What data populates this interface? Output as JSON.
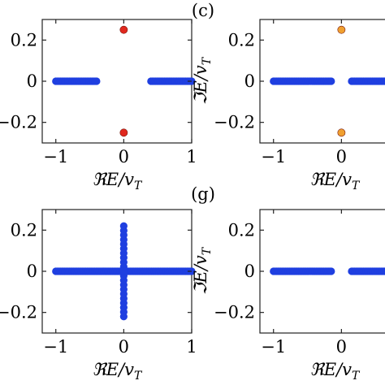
{
  "colors": {
    "blue": "#1f3fe0",
    "red": "#e0281e",
    "orange": "#f0a030"
  },
  "chart_data": [
    {
      "type": "scatter",
      "title": "(c)",
      "xlabel": "ℜE/v_T",
      "ylabel": "",
      "xlim": [
        -1.2,
        1.0
      ],
      "ylim": [
        -0.3,
        0.3
      ],
      "x_ticks": [
        "−1",
        "0",
        "1"
      ],
      "y_ticks": [
        "0.2",
        "0",
        "−0.2"
      ],
      "x_tick_values": [
        -1,
        0,
        1
      ],
      "y_tick_values": [
        0.2,
        0,
        -0.2
      ],
      "grid": false,
      "series": [
        {
          "color": "#1f3fe0",
          "segments": [
            {
              "x": [
                -1.0,
                -0.4
              ],
              "y": [
                0,
                0
              ]
            },
            {
              "x": [
                0.4,
                1.0
              ],
              "y": [
                0,
                0
              ]
            }
          ]
        },
        {
          "color": "#e0281e",
          "points": [
            {
              "x": 0,
              "y": 0.25
            },
            {
              "x": 0,
              "y": -0.25
            }
          ]
        }
      ]
    },
    {
      "type": "scatter",
      "title": "",
      "xlabel": "ℜE/v_T",
      "ylabel": "ℑE/v_T",
      "xlim": [
        -1.2,
        1.0
      ],
      "ylim": [
        -0.3,
        0.3
      ],
      "x_ticks": [
        "−1",
        "0"
      ],
      "y_ticks": [
        "0.2",
        "0",
        "−0.2"
      ],
      "x_tick_values": [
        -1,
        0
      ],
      "y_tick_values": [
        0.2,
        0,
        -0.2
      ],
      "grid": false,
      "series": [
        {
          "color": "#1f3fe0",
          "segments": [
            {
              "x": [
                -1.0,
                -0.15
              ],
              "y": [
                0,
                0
              ]
            },
            {
              "x": [
                0.15,
                1.0
              ],
              "y": [
                0,
                0
              ]
            }
          ]
        },
        {
          "color": "#f0a030",
          "points": [
            {
              "x": 0,
              "y": 0.25
            },
            {
              "x": 0,
              "y": -0.25
            }
          ]
        }
      ]
    },
    {
      "type": "scatter",
      "title": "(g)",
      "xlabel": "ℜE/v_T",
      "ylabel": "",
      "xlim": [
        -1.2,
        1.0
      ],
      "ylim": [
        -0.3,
        0.3
      ],
      "x_ticks": [
        "−1",
        "0",
        "1"
      ],
      "y_ticks": [
        "0.2",
        "0",
        "−0.2"
      ],
      "x_tick_values": [
        -1,
        0,
        1
      ],
      "y_tick_values": [
        0.2,
        0,
        -0.2
      ],
      "grid": false,
      "series": [
        {
          "color": "#1f3fe0",
          "segments": [
            {
              "x": [
                -1.0,
                1.0
              ],
              "y": [
                0,
                0
              ]
            },
            {
              "x": [
                0,
                0
              ],
              "y": [
                -0.22,
                0.22
              ]
            }
          ]
        }
      ]
    },
    {
      "type": "scatter",
      "title": "",
      "xlabel": "ℜE/v_T",
      "ylabel": "ℑE/v_T",
      "xlim": [
        -1.2,
        1.0
      ],
      "ylim": [
        -0.3,
        0.3
      ],
      "x_ticks": [
        "−1",
        "0"
      ],
      "y_ticks": [
        "0.2",
        "0",
        "−0.2"
      ],
      "x_tick_values": [
        -1,
        0
      ],
      "y_tick_values": [
        0.2,
        0,
        -0.2
      ],
      "grid": false,
      "series": [
        {
          "color": "#1f3fe0",
          "segments": [
            {
              "x": [
                -1.0,
                -0.15
              ],
              "y": [
                0,
                0
              ]
            },
            {
              "x": [
                0.15,
                1.0
              ],
              "y": [
                0,
                0
              ]
            }
          ]
        }
      ]
    }
  ]
}
